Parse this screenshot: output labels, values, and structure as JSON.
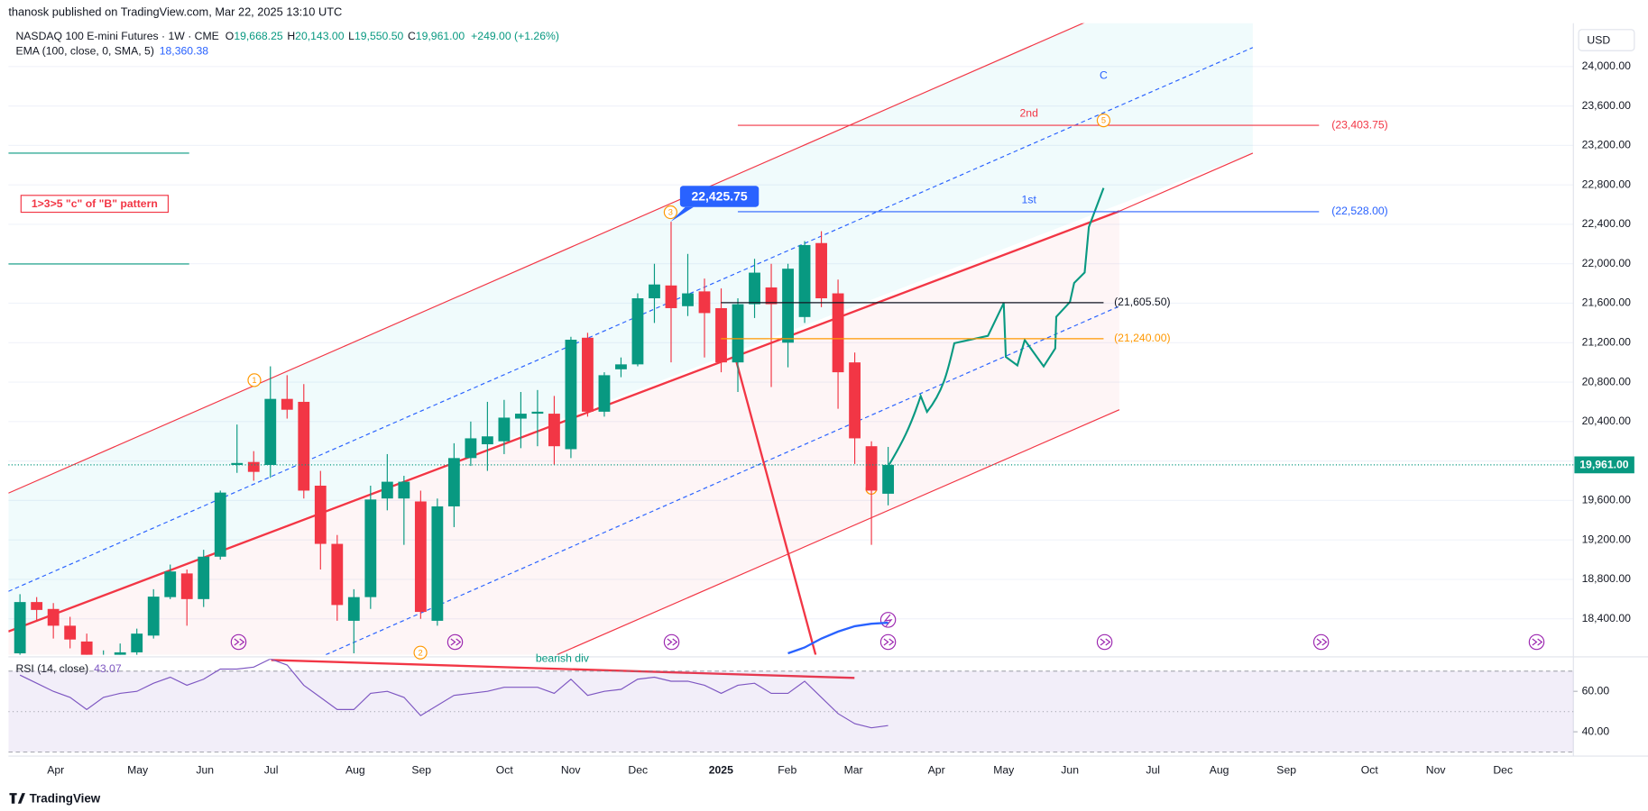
{
  "chart_data": {
    "type": "candlestick",
    "author_line": "thanosk published on TradingView.com, Mar 22, 2025 13:10 UTC",
    "symbol": "NASDAQ 100 E-mini Futures · 1W · CME",
    "ohlc": [
      {
        "key": "O",
        "value": "19,668.25"
      },
      {
        "key": "H",
        "value": "20,143.00"
      },
      {
        "key": "L",
        "value": "19,550.50"
      },
      {
        "key": "C",
        "value": "19,961.00"
      }
    ],
    "change": "+249.00 (+1.26%)",
    "currency": "USD",
    "up_color": "#089981",
    "down_color": "#f23645",
    "open": [
      18050,
      18570,
      18500,
      18330,
      18170,
      17950,
      18020,
      18060,
      18230,
      18620,
      18860,
      18600,
      19030,
      19960,
      19990,
      19960,
      20630,
      20600,
      19750,
      19160,
      18380,
      18620,
      19620,
      19620,
      19590,
      18380,
      19540,
      20030,
      20170,
      20200,
      20430,
      20480,
      20480,
      20120,
      21250,
      20500,
      20930,
      20980,
      21650,
      21780,
      21570,
      21720,
      21550,
      21000,
      21590,
      21760,
      21200,
      21460,
      22210,
      21700,
      21000,
      20150,
      19668.25
    ],
    "high": [
      18650,
      18620,
      18560,
      18420,
      18250,
      18080,
      18150,
      18300,
      18700,
      18950,
      18900,
      19100,
      19700,
      20370,
      20100,
      20960,
      20870,
      20780,
      19900,
      19250,
      18700,
      19750,
      20070,
      19850,
      19700,
      19620,
      20180,
      20400,
      20600,
      20620,
      20700,
      20720,
      20660,
      21260,
      21300,
      20900,
      21050,
      21700,
      22000,
      22425.75,
      22100,
      21850,
      21750,
      21650,
      22050,
      22000,
      22000,
      22230,
      22330,
      21840,
      21100,
      20200,
      20143
    ],
    "low": [
      17950,
      18380,
      18200,
      18100,
      17880,
      17700,
      17800,
      17980,
      18200,
      18600,
      18330,
      18520,
      19000,
      19880,
      19800,
      19830,
      20430,
      19620,
      18900,
      18380,
      18050,
      18500,
      19500,
      19150,
      18400,
      18330,
      19330,
      19950,
      19900,
      20070,
      20130,
      20150,
      19960,
      20030,
      20450,
      20450,
      20850,
      20960,
      21400,
      21000,
      21470,
      21050,
      20900,
      20700,
      21450,
      20750,
      20950,
      21400,
      21560,
      20530,
      19970,
      19150,
      19550.5
    ],
    "close": [
      18570,
      18490,
      18330,
      18190,
      17950,
      18020,
      18060,
      18250,
      18625,
      18880,
      18600,
      19030,
      19680,
      19980,
      19890,
      20630,
      20520,
      19700,
      19160,
      18540,
      18620,
      19610,
      19790,
      19790,
      18470,
      19540,
      20030,
      20230,
      20250,
      20440,
      20480,
      20500,
      20150,
      21230,
      20500,
      20870,
      20980,
      21650,
      21790,
      21550,
      21700,
      21500,
      21000,
      21590,
      21910,
      21590,
      21950,
      22190,
      21650,
      20900,
      20230,
      19700,
      19961
    ],
    "ema": {
      "label": "EMA (100, close, 0, SMA, 5)",
      "last_label": "18,360.38",
      "color": "#2962ff",
      "values": [
        null,
        null,
        null,
        null,
        null,
        null,
        null,
        null,
        null,
        null,
        null,
        null,
        null,
        null,
        null,
        null,
        null,
        null,
        null,
        null,
        null,
        null,
        null,
        null,
        null,
        null,
        null,
        null,
        null,
        null,
        null,
        null,
        null,
        null,
        null,
        null,
        null,
        null,
        null,
        null,
        null,
        null,
        null,
        null,
        null,
        null,
        18050,
        18110,
        18200,
        18270,
        18325,
        18350,
        18360.38
      ]
    },
    "ylim": [
      18036,
      24439
    ],
    "yticks": [
      {
        "value": 24000,
        "label": "24,000.00"
      },
      {
        "value": 23600,
        "label": "23,600.00"
      },
      {
        "value": 23200,
        "label": "23,200.00"
      },
      {
        "value": 22800,
        "label": "22,800.00"
      },
      {
        "value": 22400,
        "label": "22,400.00"
      },
      {
        "value": 22000,
        "label": "22,000.00"
      },
      {
        "value": 21600,
        "label": "21,600.00"
      },
      {
        "value": 21200,
        "label": "21,200.00"
      },
      {
        "value": 20800,
        "label": "20,800.00"
      },
      {
        "value": 20400,
        "label": "20,400.00"
      },
      {
        "value": 20000,
        "label": "20,000.00"
      },
      {
        "value": 19600,
        "label": "19,600.00"
      },
      {
        "value": 19200,
        "label": "19,200.00"
      },
      {
        "value": 18800,
        "label": "18,800.00"
      },
      {
        "value": 18400,
        "label": "18,400.00"
      }
    ],
    "grid": true,
    "last_price": {
      "value": 19961,
      "label": "19,961.00"
    },
    "months": [
      "Apr",
      "May",
      "Jun",
      "Jul",
      "Aug",
      "Sep",
      "Oct",
      "Nov",
      "Dec",
      "2025",
      "Feb",
      "Mar",
      "Apr",
      "May",
      "Jun",
      "Jul",
      "Aug",
      "Sep",
      "Oct",
      "Nov",
      "Dec"
    ],
    "levels": [
      {
        "value": 23403.75,
        "label": "(23,403.75)",
        "tag": "2nd",
        "color": "#f23645"
      },
      {
        "value": 22528,
        "label": "(22,528.00)",
        "tag": "1st",
        "color": "#2962ff"
      },
      {
        "value": 21605.5,
        "label": "(21,605.50)",
        "color": "#131722"
      },
      {
        "value": 21240,
        "label": "(21,240.00)",
        "color": "#ff9800"
      }
    ],
    "peak_label": {
      "value": 22425.75,
      "label": "22,425.75"
    },
    "pattern_note": "1>3>5 \"c\" of \"B\" pattern",
    "wave_c": "C",
    "wave_labels": [
      "1",
      "2",
      "3",
      "5"
    ],
    "rsi": {
      "title": "RSI (14, close)",
      "last_label": "43.07",
      "color": "#7e57c2",
      "values": [
        68,
        64,
        60,
        57,
        51,
        57,
        59,
        60,
        64,
        67,
        63,
        66,
        71,
        71,
        72,
        76,
        73,
        63,
        57,
        51,
        51,
        59,
        60,
        57,
        48,
        53,
        58,
        59,
        60,
        62,
        62,
        62,
        59,
        66,
        58,
        60,
        61,
        66,
        67,
        65,
        65,
        63,
        59,
        63,
        64,
        59,
        59,
        65,
        57,
        49,
        44,
        42,
        43.07
      ],
      "ylim": [
        28,
        76
      ],
      "yticks": [
        {
          "value": 60,
          "label": "60.00"
        },
        {
          "value": 40,
          "label": "40.00"
        }
      ],
      "levels": [
        70,
        50,
        30
      ],
      "divergence_label": "bearish div"
    },
    "brand": "TradingView"
  }
}
